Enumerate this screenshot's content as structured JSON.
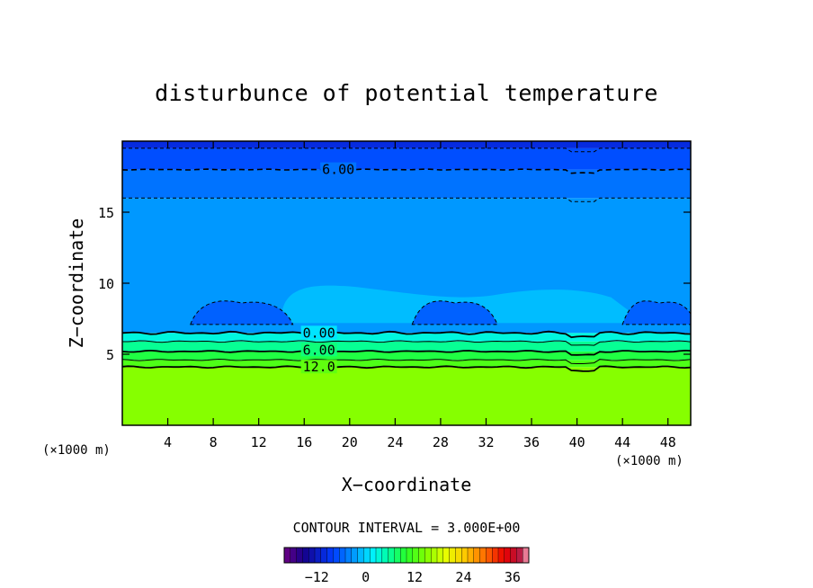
{
  "chart_data": {
    "type": "heatmap",
    "title": "disturbunce of potential temperature",
    "xlabel": "X−coordinate",
    "ylabel": "Z−coordinate",
    "x_unit_left": "(×1000 m)",
    "x_unit_right": "(×1000 m)",
    "xlim": [
      0,
      50
    ],
    "ylim": [
      0,
      20
    ],
    "x_ticks": [
      4,
      8,
      12,
      16,
      20,
      24,
      28,
      32,
      36,
      40,
      44,
      48
    ],
    "y_ticks": [
      5,
      10,
      15
    ],
    "contour_interval_text": "CONTOUR INTERVAL = 3.000E+00",
    "contour_labels": [
      {
        "text": "6.00",
        "x": 19.0,
        "z": 18.0
      },
      {
        "text": "0.00",
        "x": 17.3,
        "z": 6.5
      },
      {
        "text": "6.00",
        "x": 17.3,
        "z": 5.3
      },
      {
        "text": "12.0",
        "x": 17.3,
        "z": 4.1
      }
    ],
    "layers": [
      {
        "z0": 0.0,
        "z1": 4.1,
        "value": 15
      },
      {
        "z0": 4.1,
        "z1": 4.6,
        "value": 12
      },
      {
        "z0": 4.6,
        "z1": 5.2,
        "value": 9
      },
      {
        "z0": 5.2,
        "z1": 5.9,
        "value": 6
      },
      {
        "z0": 5.9,
        "z1": 6.5,
        "value": 3
      },
      {
        "z0": 6.5,
        "z1": 16.0,
        "value": -3
      },
      {
        "z0": 16.0,
        "z1": 18.0,
        "value": -5
      },
      {
        "z0": 18.0,
        "z1": 19.5,
        "value": -7
      },
      {
        "z0": 19.5,
        "z1": 20.0,
        "value": -10
      }
    ],
    "negative_domes": [
      {
        "x0": 6,
        "x1": 15,
        "peak_z": 8.6,
        "value": -6
      },
      {
        "x0": 25.5,
        "x1": 33,
        "peak_z": 8.6,
        "value": -6
      },
      {
        "x0": 44,
        "x1": 50.5,
        "peak_z": 8.6,
        "value": -6
      }
    ],
    "colorbar": {
      "min": -20,
      "max": 40,
      "tick_labels": [
        "−12",
        "0",
        "12",
        "24",
        "36"
      ],
      "tick_values": [
        -12,
        0,
        12,
        24,
        36
      ]
    }
  }
}
